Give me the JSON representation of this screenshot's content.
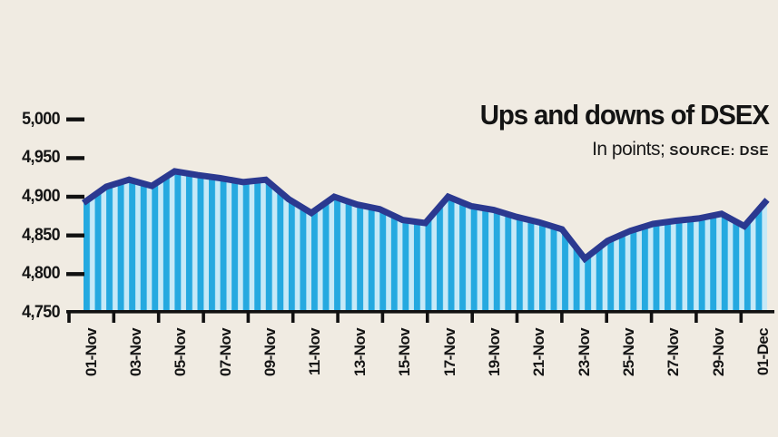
{
  "header": {
    "title": "Ups and downs of DSEX",
    "units": "In points;",
    "source": "SOURCE: DSE"
  },
  "chart_data": {
    "type": "area",
    "title": "Ups and downs of DSEX",
    "subtitle": "In points; SOURCE: DSE",
    "x": [
      "01-Nov",
      "02-Nov",
      "03-Nov",
      "04-Nov",
      "05-Nov",
      "06-Nov",
      "07-Nov",
      "08-Nov",
      "09-Nov",
      "10-Nov",
      "11-Nov",
      "12-Nov",
      "13-Nov",
      "14-Nov",
      "15-Nov",
      "16-Nov",
      "17-Nov",
      "18-Nov",
      "19-Nov",
      "20-Nov",
      "21-Nov",
      "22-Nov",
      "23-Nov",
      "24-Nov",
      "25-Nov",
      "26-Nov",
      "27-Nov",
      "28-Nov",
      "29-Nov",
      "30-Nov",
      "01-Dec"
    ],
    "values": [
      4892,
      4913,
      4922,
      4914,
      4933,
      4928,
      4924,
      4919,
      4922,
      4897,
      4879,
      4900,
      4890,
      4884,
      4870,
      4866,
      4900,
      4888,
      4883,
      4874,
      4867,
      4858,
      4820,
      4843,
      4856,
      4865,
      4869,
      4872,
      4878,
      4862,
      4896
    ],
    "x_axis_labels": [
      "01-Nov",
      "03-Nov",
      "05-Nov",
      "07-Nov",
      "09-Nov",
      "11-Nov",
      "13-Nov",
      "15-Nov",
      "17-Nov",
      "19-Nov",
      "21-Nov",
      "23-Nov",
      "25-Nov",
      "27-Nov",
      "29-Nov",
      "01-Dec"
    ],
    "y_ticks": [
      4750,
      4800,
      4850,
      4900,
      4950,
      5000
    ],
    "y_tick_labels": [
      "4,750",
      "4,800",
      "4,850",
      "4,900",
      "4,950",
      "5,000"
    ],
    "ylim": [
      4750,
      5000
    ],
    "grid": false,
    "legend": "none",
    "colors": {
      "line": "#2B3990",
      "stripe_dark": "#25A9E0",
      "stripe_light": "#C6E9F7",
      "axis": "#111111",
      "text": "#151515",
      "background": "#F0EBE2"
    }
  }
}
